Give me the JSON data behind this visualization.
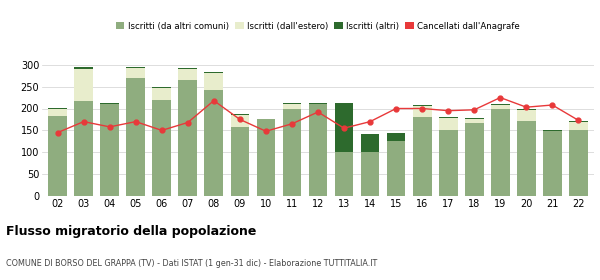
{
  "years": [
    "02",
    "03",
    "04",
    "05",
    "06",
    "07",
    "08",
    "09",
    "10",
    "11",
    "12",
    "13",
    "14",
    "15",
    "16",
    "17",
    "18",
    "19",
    "20",
    "21",
    "22"
  ],
  "comuni": [
    182,
    218,
    210,
    270,
    220,
    265,
    242,
    158,
    175,
    200,
    210,
    100,
    100,
    125,
    180,
    150,
    168,
    198,
    172,
    148,
    152
  ],
  "estero": [
    18,
    72,
    0,
    22,
    28,
    25,
    40,
    28,
    0,
    10,
    0,
    0,
    0,
    0,
    25,
    28,
    8,
    10,
    25,
    0,
    18
  ],
  "altri": [
    2,
    4,
    2,
    3,
    2,
    3,
    2,
    2,
    2,
    3,
    3,
    112,
    42,
    18,
    3,
    2,
    2,
    2,
    2,
    2,
    2
  ],
  "cancellati": [
    145,
    170,
    158,
    170,
    150,
    168,
    218,
    175,
    148,
    165,
    192,
    155,
    170,
    200,
    200,
    195,
    197,
    225,
    203,
    208,
    173
  ],
  "color_comuni": "#8fad7f",
  "color_estero": "#e8edcc",
  "color_altri": "#2d6a2d",
  "color_cancellati": "#e8393a",
  "color_line": "#f5b8b8",
  "bg_color": "#ffffff",
  "grid_color": "#d0d0d0",
  "title": "Flusso migratorio della popolazione",
  "subtitle": "COMUNE DI BORSO DEL GRAPPA (TV) - Dati ISTAT (1 gen-31 dic) - Elaborazione TUTTITALIA.IT",
  "legend_labels": [
    "Iscritti (da altri comuni)",
    "Iscritti (dall'estero)",
    "Iscritti (altri)",
    "Cancellati dall'Anagrafe"
  ],
  "ylim": [
    0,
    320
  ],
  "yticks": [
    0,
    50,
    100,
    150,
    200,
    250,
    300
  ]
}
